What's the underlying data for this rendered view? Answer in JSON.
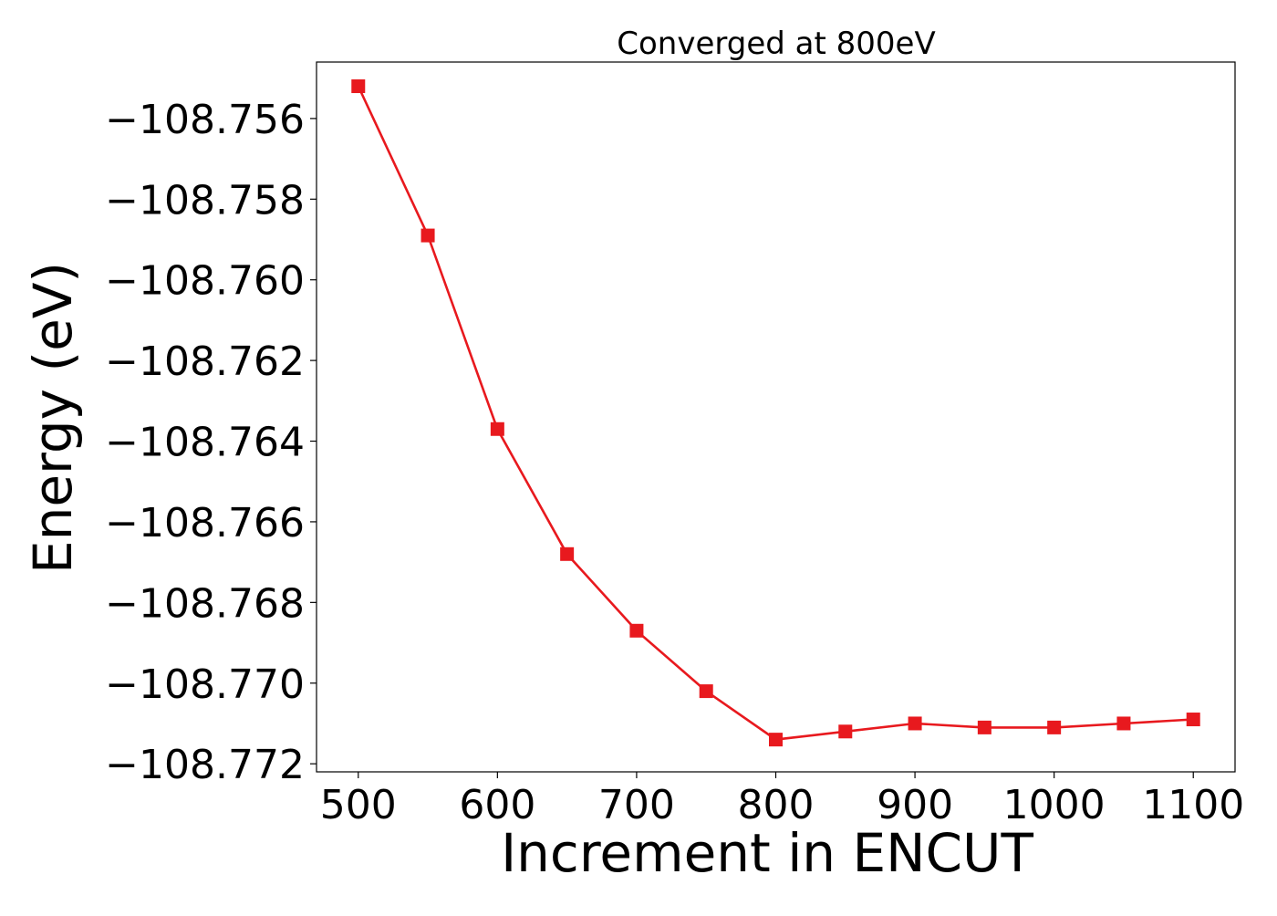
{
  "chart_data": {
    "type": "line",
    "title": "Converged at 800eV",
    "xlabel": "Increment in ENCUT",
    "ylabel": "Energy (eV)",
    "xlim": [
      470,
      1130
    ],
    "ylim": [
      -108.7722,
      -108.7546
    ],
    "xticks": [
      500,
      600,
      700,
      800,
      900,
      1000,
      1100
    ],
    "yticks": [
      -108.756,
      -108.758,
      -108.76,
      -108.762,
      -108.764,
      -108.766,
      -108.768,
      -108.77,
      -108.772
    ],
    "grid": false,
    "series": [
      {
        "color": "#e8191e",
        "marker": "square",
        "x": [
          500,
          550,
          600,
          650,
          700,
          750,
          800,
          850,
          900,
          950,
          1000,
          1050,
          1100
        ],
        "y": [
          -108.7552,
          -108.7589,
          -108.7637,
          -108.7668,
          -108.7687,
          -108.7702,
          -108.7714,
          -108.7712,
          -108.771,
          -108.7711,
          -108.7711,
          -108.771,
          -108.7709
        ]
      }
    ]
  }
}
